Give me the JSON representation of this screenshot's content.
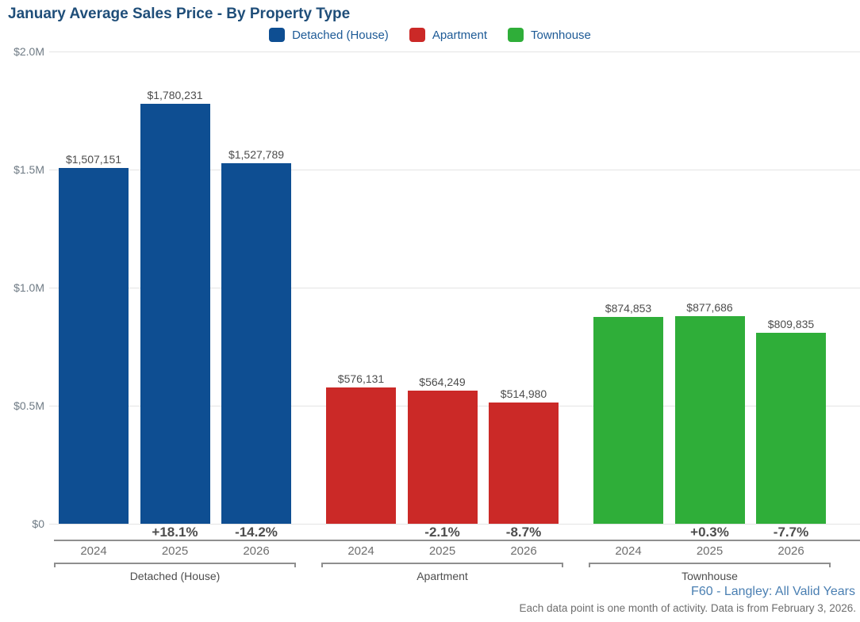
{
  "title": "January Average Sales Price - By Property Type",
  "legend": {
    "items": [
      {
        "label": "Detached (House)",
        "color": "#0e4e92"
      },
      {
        "label": "Apartment",
        "color": "#cb2927"
      },
      {
        "label": "Townhouse",
        "color": "#2fae39"
      }
    ]
  },
  "chart_data": {
    "type": "bar",
    "title": "January Average Sales Price - By Property Type",
    "xlabel": "",
    "ylabel": "",
    "ylim": [
      0,
      2000000
    ],
    "grid": true,
    "legend_position": "top",
    "y_ticks": [
      {
        "value": 0,
        "label": "$0"
      },
      {
        "value": 500000,
        "label": "$0.5M"
      },
      {
        "value": 1000000,
        "label": "$1.0M"
      },
      {
        "value": 1500000,
        "label": "$1.5M"
      },
      {
        "value": 2000000,
        "label": "$2.0M"
      }
    ],
    "categories": [
      "2024",
      "2025",
      "2026"
    ],
    "series": [
      {
        "name": "Detached (House)",
        "color": "#0e4e92",
        "values": [
          1507151,
          1780231,
          1527789
        ],
        "value_labels": [
          "$1,507,151",
          "$1,780,231",
          "$1,527,789"
        ],
        "pct_change": [
          "",
          "+18.1%",
          "-14.2%"
        ]
      },
      {
        "name": "Apartment",
        "color": "#cb2927",
        "values": [
          576131,
          564249,
          514980
        ],
        "value_labels": [
          "$576,131",
          "$564,249",
          "$514,980"
        ],
        "pct_change": [
          "",
          "-2.1%",
          "-8.7%"
        ]
      },
      {
        "name": "Townhouse",
        "color": "#2fae39",
        "values": [
          874853,
          877686,
          809835
        ],
        "value_labels": [
          "$874,853",
          "$877,686",
          "$809,835"
        ],
        "pct_change": [
          "",
          "+0.3%",
          "-7.7%"
        ]
      }
    ]
  },
  "footer": {
    "source": "F60 - Langley: All Valid Years",
    "note": "Each data point is one month of activity. Data is from February 3, 2026."
  }
}
